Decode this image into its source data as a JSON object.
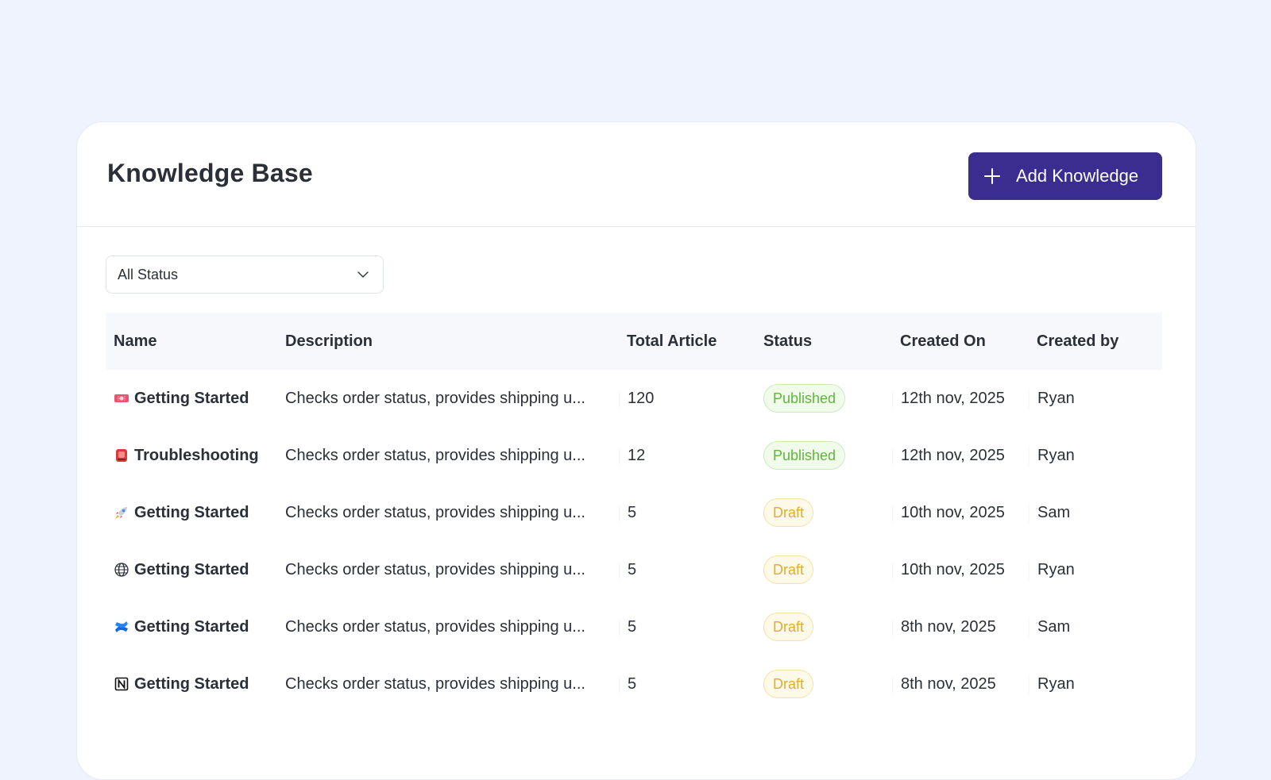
{
  "header": {
    "title": "Knowledge Base",
    "add_button_label": "Add Knowledge",
    "accent_color": "#3b2c8f"
  },
  "filter": {
    "selected": "All Status"
  },
  "table": {
    "columns": [
      "Name",
      "Description",
      "Total Article",
      "Status",
      "Created On",
      "Created by"
    ],
    "rows": [
      {
        "icon": "ticket-icon",
        "name": "Getting Started",
        "description": "Checks order status, provides shipping u...",
        "total": "120",
        "status": "Published",
        "created_on": "12th nov, 2025",
        "created_by": "Ryan"
      },
      {
        "icon": "alarm-light-icon",
        "name": "Troubleshooting",
        "description": "Checks order status, provides shipping u...",
        "total": "12",
        "status": "Published",
        "created_on": "12th nov, 2025",
        "created_by": "Ryan"
      },
      {
        "icon": "rocket-icon",
        "name": "Getting Started",
        "description": "Checks order status, provides shipping u...",
        "total": "5",
        "status": "Draft",
        "created_on": "10th nov, 2025",
        "created_by": "Sam"
      },
      {
        "icon": "globe-icon",
        "name": "Getting Started",
        "description": "Checks order status, provides shipping u...",
        "total": "5",
        "status": "Draft",
        "created_on": "10th nov, 2025",
        "created_by": "Ryan"
      },
      {
        "icon": "confluence-icon",
        "name": "Getting Started",
        "description": "Checks order status, provides shipping u...",
        "total": "5",
        "status": "Draft",
        "created_on": "8th nov, 2025",
        "created_by": "Sam"
      },
      {
        "icon": "notion-icon",
        "name": "Getting Started",
        "description": "Checks order status, provides shipping u...",
        "total": "5",
        "status": "Draft",
        "created_on": "8th nov, 2025",
        "created_by": "Ryan"
      }
    ]
  },
  "status_colors": {
    "published": "#5fb63f",
    "draft": "#e2ad2d"
  }
}
